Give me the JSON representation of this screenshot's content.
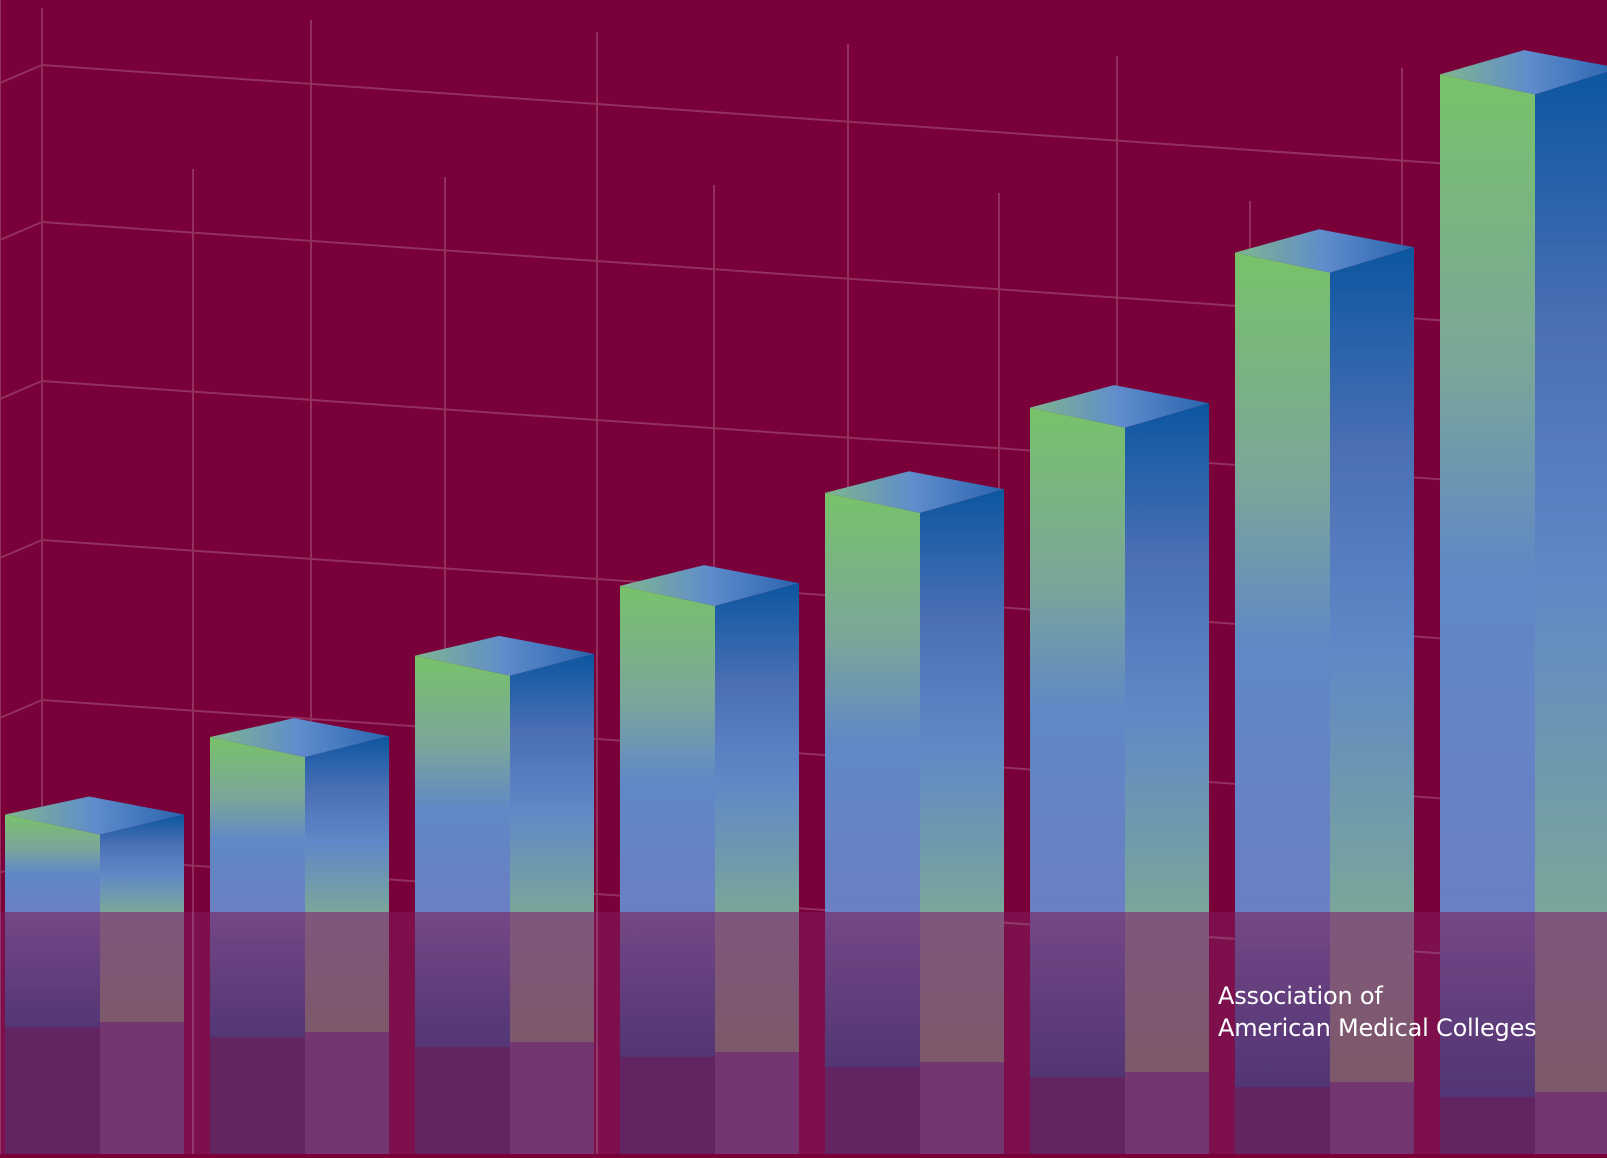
{
  "brand": {
    "line1": "Association of",
    "line2": "American Medical Colleges"
  },
  "colors": {
    "background": "#7a0039",
    "grid": "#93305e",
    "front_top": "#78c26a",
    "front_mid": "#5f88c6",
    "side_top": "#0b56a0",
    "side_mid": "#6a7fc4",
    "reflection_overlay": "#7e5aa6"
  },
  "chart_data": {
    "type": "bar",
    "style": "3d-columns-with-reflection",
    "values": [
      1.0,
      2.0,
      3.05,
      3.95,
      5.15,
      6.25,
      8.25,
      10.55
    ],
    "grid": true,
    "legend": "none"
  }
}
